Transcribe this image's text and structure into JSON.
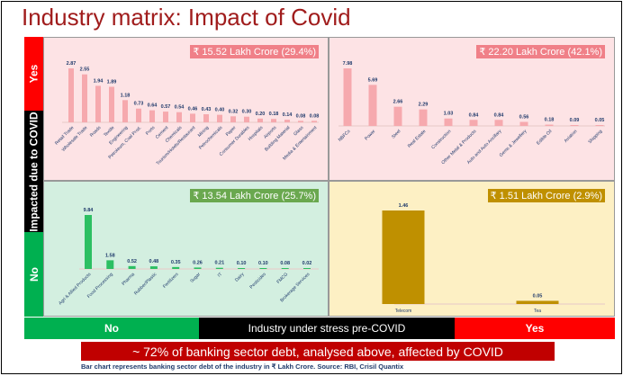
{
  "title": "Industry matrix: Impact of Covid",
  "y_axis": {
    "label": "Impacted due to COVID",
    "yes": "Yes",
    "no": "No"
  },
  "x_axis": {
    "label": "Industry under stress pre-COVID",
    "yes": "Yes",
    "no": "No"
  },
  "banner": "~ 72% of banking sector debt, analysed above, affected by COVID",
  "footnote": "Bar chart represents banking sector debt of the industry in ₹ Lakh Crore. Source: RBI, Crisil Quantix",
  "colors": {
    "red": "#ff0000",
    "black": "#000000",
    "green": "#00b050",
    "banner": "#c00000",
    "title": "#a01c1c"
  },
  "chart_data": [
    {
      "type": "bar",
      "quadrant": "impacted-yes / stress-no",
      "total": "₹ 15.52 Lakh Crore (29.4%)",
      "bg": "#fde3e5",
      "bar_color": "#f6a9ae",
      "label_color": "#f08088",
      "categories": [
        "Retail Trade",
        "Wholesale Trade",
        "Roads",
        "Textile",
        "Engineering",
        "Petroleum, Coal Prod.",
        "Ports",
        "Cement",
        "Chemicals",
        "Tourism/Hotels/Restaurant",
        "Mining",
        "Petrochemicals",
        "Paper",
        "Consumer Durables",
        "Hospitals",
        "Airports",
        "Building Material",
        "Glass",
        "Media & Entertainment"
      ],
      "values": [
        2.87,
        2.55,
        1.94,
        1.89,
        1.18,
        0.73,
        0.64,
        0.57,
        0.54,
        0.46,
        0.43,
        0.4,
        0.32,
        0.3,
        0.2,
        0.18,
        0.14,
        0.08,
        0.08
      ]
    },
    {
      "type": "bar",
      "quadrant": "impacted-yes / stress-yes",
      "total": "₹ 22.20 Lakh Crore (42.1%)",
      "bg": "#fde3e5",
      "bar_color": "#f6a9ae",
      "label_color": "#f08088",
      "categories": [
        "NBFCs",
        "Power",
        "Steel",
        "Real Estate",
        "Construction",
        "Other Metal & Products",
        "Auto and Auto Ancillary",
        "Gems & Jewellery",
        "Edible Oil",
        "Aviation",
        "Shipping"
      ],
      "values": [
        7.98,
        5.69,
        2.66,
        2.29,
        1.03,
        0.84,
        0.84,
        0.56,
        0.18,
        0.09,
        0.05
      ]
    },
    {
      "type": "bar",
      "quadrant": "impacted-no / stress-no",
      "total": "₹ 13.54 Lakh Crore (25.7%)",
      "bg": "#d3efe0",
      "bar_color": "#2cbf62",
      "label_color": "#6aa84f",
      "categories": [
        "Agri & Allied Products",
        "Food Processing",
        "Pharma",
        "Rubber/Plastic",
        "Fertilizers",
        "Sugar",
        "IT",
        "Dairy",
        "Pesticides",
        "FMCG",
        "Brokerage Services"
      ],
      "values": [
        9.84,
        1.58,
        0.52,
        0.48,
        0.35,
        0.26,
        0.21,
        0.1,
        0.1,
        0.08,
        0.02
      ]
    },
    {
      "type": "bar",
      "quadrant": "impacted-no / stress-yes",
      "total": "₹ 1.51 Lakh Crore (2.9%)",
      "bg": "#fdf0c4",
      "bar_color": "#bf9000",
      "label_color": "#bf9000",
      "categories": [
        "Telecom",
        "Tea"
      ],
      "values": [
        1.46,
        0.05
      ]
    }
  ]
}
